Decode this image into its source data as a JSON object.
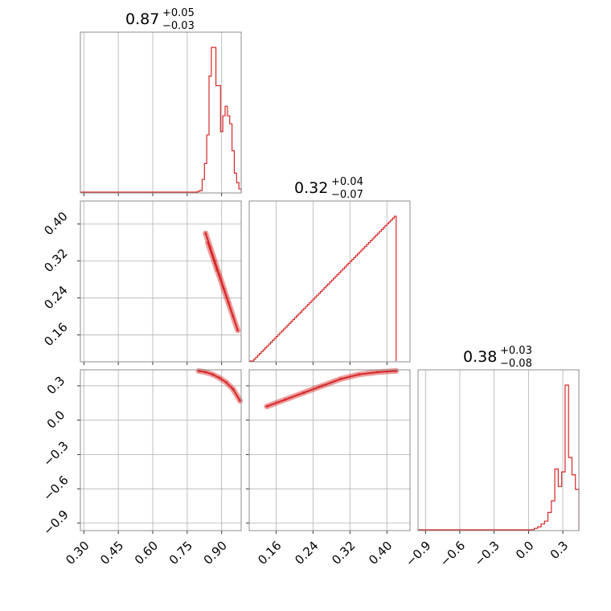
{
  "chart_data": {
    "type": "corner",
    "color": "#d62728",
    "grid": true,
    "parameters": [
      {
        "range": [
          0.285,
          0.985
        ],
        "ticks": [
          "0.30",
          "0.45",
          "0.60",
          "0.75",
          "0.90"
        ],
        "tick_values": [
          0.3,
          0.45,
          0.6,
          0.75,
          0.9
        ]
      },
      {
        "range": [
          0.102,
          0.45
        ],
        "ticks": [
          "0.16",
          "0.24",
          "0.32",
          "0.40"
        ],
        "tick_values": [
          0.16,
          0.24,
          0.32,
          0.4
        ]
      },
      {
        "range": [
          -0.965,
          0.44
        ],
        "ticks": [
          "−0.9",
          "−0.6",
          "−0.3",
          "0.0",
          "0.3"
        ],
        "tick_values": [
          -0.9,
          -0.6,
          -0.3,
          0.0,
          0.3
        ]
      }
    ],
    "titles": [
      {
        "value": "0.87",
        "plus": "+0.05",
        "minus": "−0.03"
      },
      {
        "value": "0.32",
        "plus": "+0.04",
        "minus": "−0.07"
      },
      {
        "value": "0.38",
        "plus": "+0.03",
        "minus": "−0.08"
      }
    ],
    "histograms": [
      {
        "edges": [
          0.795,
          0.805,
          0.815,
          0.825,
          0.835,
          0.845,
          0.855,
          0.865,
          0.875,
          0.885,
          0.895,
          0.905,
          0.915,
          0.925,
          0.935,
          0.945,
          0.955,
          0.965,
          0.975,
          0.985
        ],
        "counts": [
          0.5,
          1,
          8,
          18,
          36,
          73,
          91,
          91,
          67,
          67,
          38,
          48,
          54,
          48,
          43,
          26,
          12,
          6,
          2
        ]
      },
      {
        "edges": [
          0.112,
          0.116,
          0.12,
          0.124,
          0.128,
          0.132,
          0.136,
          0.14,
          0.144,
          0.148,
          0.152,
          0.156,
          0.16,
          0.164,
          0.168,
          0.172,
          0.176,
          0.18,
          0.184,
          0.188,
          0.192,
          0.196,
          0.2,
          0.204,
          0.208,
          0.212,
          0.216,
          0.22,
          0.224,
          0.228,
          0.232,
          0.236,
          0.24,
          0.244,
          0.248,
          0.252,
          0.256,
          0.26,
          0.264,
          0.268,
          0.272,
          0.276,
          0.28,
          0.284,
          0.288,
          0.292,
          0.296,
          0.3,
          0.304,
          0.308,
          0.312,
          0.316,
          0.32,
          0.324,
          0.328,
          0.332,
          0.336,
          0.34,
          0.344,
          0.348,
          0.352,
          0.356,
          0.36,
          0.364,
          0.368,
          0.372,
          0.376,
          0.38,
          0.384,
          0.388,
          0.392,
          0.396,
          0.4,
          0.404,
          0.408,
          0.412,
          0.416,
          0.42
        ],
        "counts": [
          2,
          4,
          6,
          8,
          10,
          12,
          14,
          16,
          18,
          20,
          22,
          24,
          26,
          28,
          30,
          32,
          34,
          36,
          38,
          40,
          42,
          44,
          46,
          48,
          50,
          52,
          54,
          56,
          58,
          60,
          62,
          64,
          66,
          68,
          70,
          72,
          74,
          76,
          78,
          80,
          82,
          84,
          86,
          88,
          90,
          92,
          94,
          96,
          98,
          100,
          102,
          104,
          106,
          108,
          110,
          112,
          114,
          116,
          118,
          120,
          122,
          124,
          126,
          128,
          130,
          132,
          134,
          136,
          138,
          140,
          142,
          144,
          146,
          148,
          150,
          152,
          154
        ]
      },
      {
        "edges": [
          0.05,
          0.08,
          0.11,
          0.14,
          0.17,
          0.2,
          0.23,
          0.26,
          0.29,
          0.32,
          0.35,
          0.38,
          0.41,
          0.44
        ],
        "counts": [
          1,
          2,
          4,
          6,
          12,
          20,
          42,
          30,
          40,
          100,
          50,
          38,
          28
        ]
      }
    ],
    "scatter": [
      {
        "pair": [
          0,
          1
        ],
        "points": [
          [
            0.83,
            0.38
          ],
          [
            0.85,
            0.35
          ],
          [
            0.87,
            0.32
          ],
          [
            0.89,
            0.29
          ],
          [
            0.91,
            0.26
          ],
          [
            0.93,
            0.23
          ],
          [
            0.95,
            0.2
          ],
          [
            0.97,
            0.17
          ],
          [
            0.84,
            0.36
          ],
          [
            0.88,
            0.3
          ]
        ]
      },
      {
        "pair": [
          0,
          2
        ],
        "points": [
          [
            0.8,
            0.43
          ],
          [
            0.83,
            0.42
          ],
          [
            0.86,
            0.4
          ],
          [
            0.89,
            0.37
          ],
          [
            0.92,
            0.33
          ],
          [
            0.95,
            0.27
          ],
          [
            0.98,
            0.17
          ]
        ]
      },
      {
        "pair": [
          1,
          2
        ],
        "points": [
          [
            0.14,
            0.12
          ],
          [
            0.18,
            0.18
          ],
          [
            0.22,
            0.24
          ],
          [
            0.26,
            0.3
          ],
          [
            0.3,
            0.36
          ],
          [
            0.34,
            0.4
          ],
          [
            0.38,
            0.42
          ],
          [
            0.42,
            0.43
          ]
        ]
      }
    ]
  }
}
